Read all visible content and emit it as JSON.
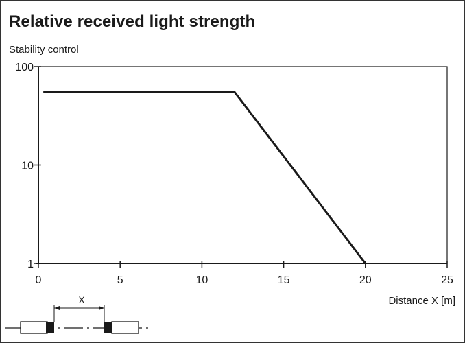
{
  "chart_data": {
    "type": "line",
    "title": "Relative received light strength",
    "ylabel": "Stability control",
    "xlabel": "Distance X [m]",
    "xlim": [
      0,
      25
    ],
    "ylim": [
      1,
      100
    ],
    "yscale": "log",
    "xticks": [
      "0",
      "5",
      "10",
      "15",
      "20",
      "25"
    ],
    "yticks": [
      "1",
      "10",
      "100"
    ],
    "series": [
      {
        "x": [
          0.3,
          12,
          20
        ],
        "y": [
          55,
          55,
          1
        ]
      }
    ],
    "gridlines_y": [
      10
    ],
    "legend": "none"
  },
  "diagram": {
    "label": "X"
  }
}
